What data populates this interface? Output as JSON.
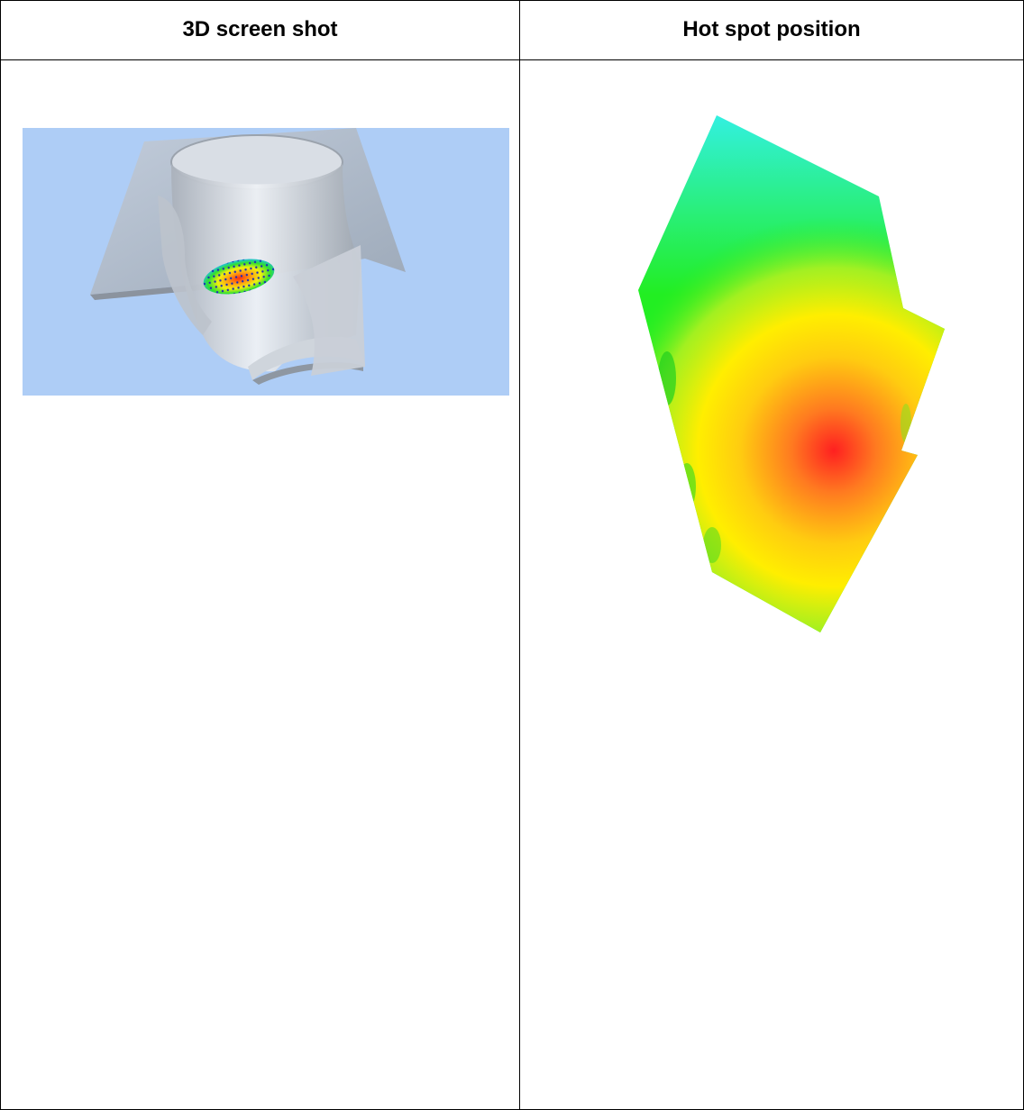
{
  "table": {
    "headers": [
      {
        "label": "3D screen shot"
      },
      {
        "label": "Hot spot position"
      }
    ]
  },
  "images": {
    "screenshot_3d": {
      "description_icon": "3d-model-render-icon"
    },
    "hotspot_map": {
      "description_icon": "heatmap-icon"
    }
  },
  "colors": {
    "border": "#000000",
    "render_background": "#aecdf6",
    "heat_hot": "#ff2020",
    "heat_mid": "#ffee00",
    "heat_cool": "#22ee22",
    "heat_cold": "#33f0e8"
  }
}
